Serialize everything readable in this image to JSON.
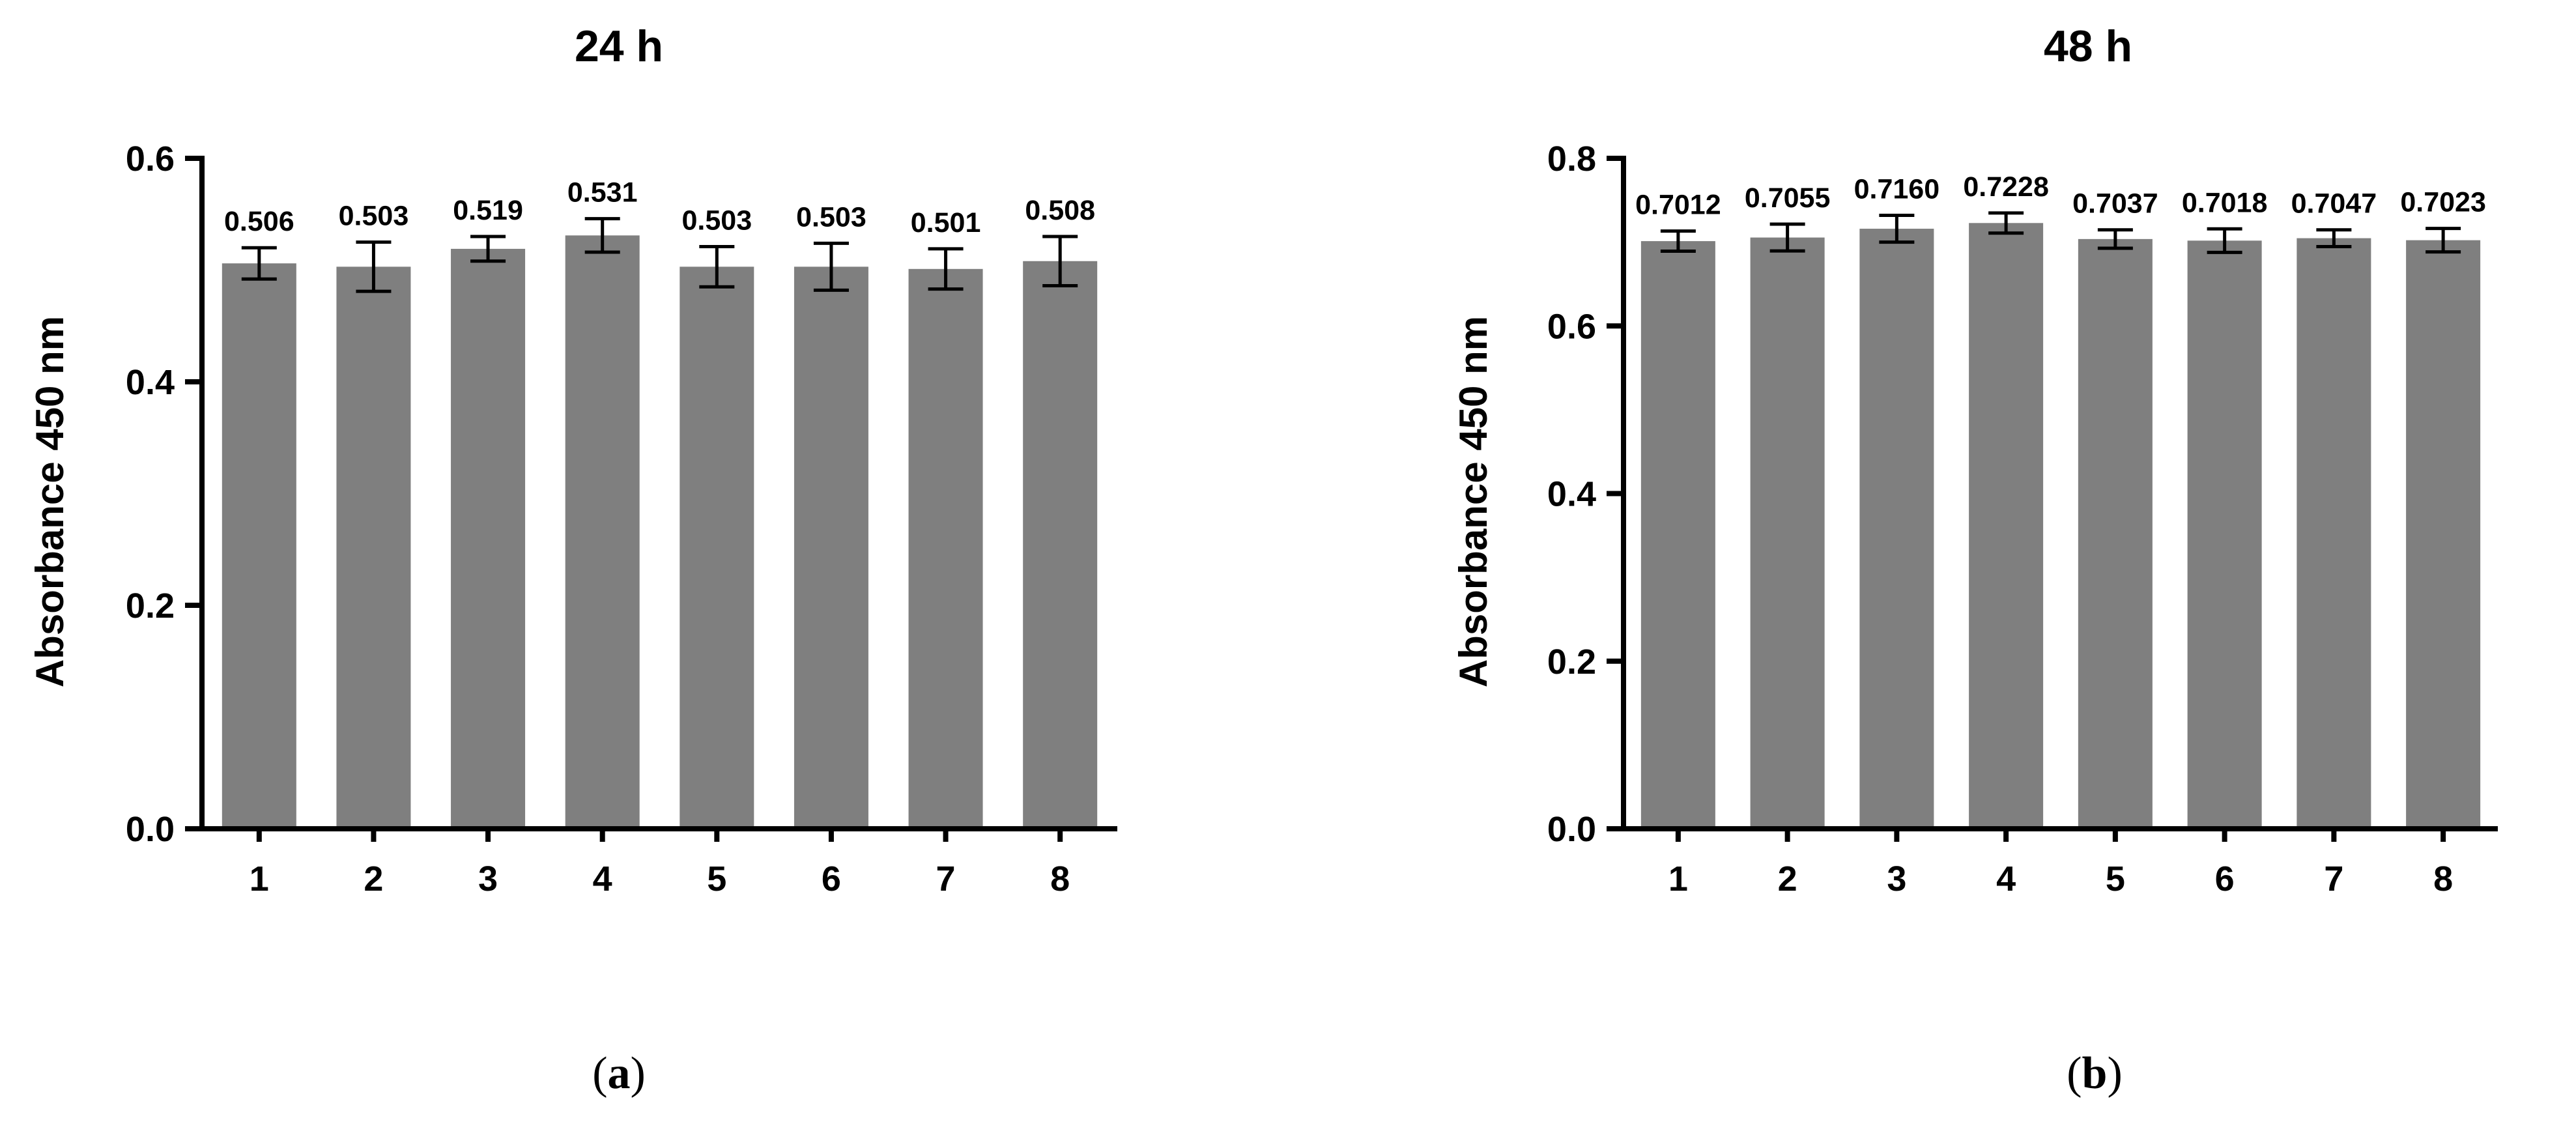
{
  "colors": {
    "bar_fill": "#7f7f7f",
    "axis": "#000000",
    "error_bar": "#000000",
    "background": "#ffffff"
  },
  "panels": [
    {
      "caption_letter": "a",
      "caption_open": "(",
      "caption_close": ")"
    },
    {
      "caption_letter": "b",
      "caption_open": "(",
      "caption_close": ")"
    }
  ],
  "chart_data": [
    {
      "type": "bar",
      "title": "24 h",
      "xlabel": "",
      "ylabel": "Absorbance 450 nm",
      "categories": [
        "1",
        "2",
        "3",
        "4",
        "5",
        "6",
        "7",
        "8"
      ],
      "values": [
        0.506,
        0.503,
        0.519,
        0.531,
        0.503,
        0.503,
        0.501,
        0.508
      ],
      "error": [
        0.014,
        0.022,
        0.011,
        0.015,
        0.018,
        0.021,
        0.018,
        0.022
      ],
      "data_labels": [
        "0.506",
        "0.503",
        "0.519",
        "0.531",
        "0.503",
        "0.503",
        "0.501",
        "0.508"
      ],
      "ylim": [
        0,
        0.6
      ],
      "yticks": [
        0.0,
        0.2,
        0.4,
        0.6
      ],
      "ytick_labels": [
        "0.0",
        "0.2",
        "0.4",
        "0.6"
      ],
      "grid": false,
      "legend": "none"
    },
    {
      "type": "bar",
      "title": "48 h",
      "xlabel": "",
      "ylabel": "Absorbance 450 nm",
      "categories": [
        "1",
        "2",
        "3",
        "4",
        "5",
        "6",
        "7",
        "8"
      ],
      "values": [
        0.7012,
        0.7055,
        0.716,
        0.7228,
        0.7037,
        0.7018,
        0.7047,
        0.7023
      ],
      "error": [
        0.012,
        0.016,
        0.016,
        0.012,
        0.011,
        0.014,
        0.01,
        0.014
      ],
      "data_labels": [
        "0.7012",
        "0.7055",
        "0.7160",
        "0.7228",
        "0.7037",
        "0.7018",
        "0.7047",
        "0.7023"
      ],
      "ylim": [
        0,
        0.8
      ],
      "yticks": [
        0.0,
        0.2,
        0.4,
        0.6,
        0.8
      ],
      "ytick_labels": [
        "0.0",
        "0.2",
        "0.4",
        "0.6",
        "0.8"
      ],
      "grid": false,
      "legend": "none"
    }
  ]
}
